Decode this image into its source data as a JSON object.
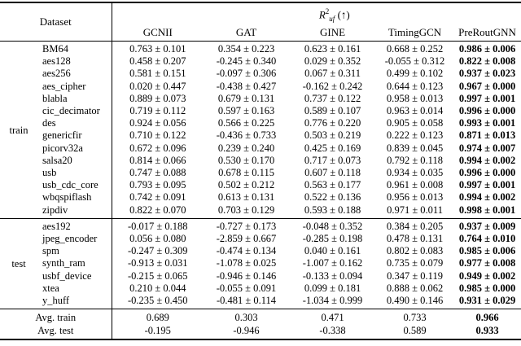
{
  "colors": {
    "background": "#ffffff",
    "text": "#000000",
    "rule": "#000000"
  },
  "table": {
    "header": {
      "dataset_label": "Dataset",
      "metric": {
        "base": "R",
        "sup": "2",
        "sub": "uf",
        "suffix": " (↑)"
      },
      "columns": [
        "GCNII",
        "GAT",
        "GINE",
        "TimingGCN",
        "PreRoutGNN"
      ]
    },
    "groups": [
      {
        "label": "train",
        "rows": [
          {
            "dataset": "BM64",
            "values": [
              "0.763 ± 0.101",
              "0.354 ± 0.223",
              "0.623 ± 0.161",
              "0.668 ± 0.252",
              "0.986 ± 0.006"
            ]
          },
          {
            "dataset": "aes128",
            "values": [
              "0.458 ± 0.207",
              "-0.245 ± 0.340",
              "0.029 ± 0.352",
              "-0.055 ± 0.312",
              "0.822 ± 0.008"
            ]
          },
          {
            "dataset": "aes256",
            "values": [
              "0.581 ± 0.151",
              "-0.097 ± 0.306",
              "0.067 ± 0.311",
              "0.499 ± 0.102",
              "0.937 ± 0.023"
            ]
          },
          {
            "dataset": "aes_cipher",
            "values": [
              "0.020 ± 0.447",
              "-0.438 ± 0.427",
              "-0.162 ± 0.242",
              "0.644 ± 0.123",
              "0.967 ± 0.000"
            ]
          },
          {
            "dataset": "blabla",
            "values": [
              "0.889 ± 0.073",
              "0.679 ± 0.131",
              "0.737 ± 0.122",
              "0.958 ± 0.013",
              "0.997 ± 0.001"
            ]
          },
          {
            "dataset": "cic_decimator",
            "values": [
              "0.719 ± 0.112",
              "0.597 ± 0.163",
              "0.589 ± 0.107",
              "0.963 ± 0.014",
              "0.996 ± 0.000"
            ]
          },
          {
            "dataset": "des",
            "values": [
              "0.924 ± 0.056",
              "0.566 ± 0.225",
              "0.776 ± 0.220",
              "0.905 ± 0.058",
              "0.993 ± 0.001"
            ]
          },
          {
            "dataset": "genericfir",
            "values": [
              "0.710 ± 0.122",
              "-0.436 ± 0.733",
              "0.503 ± 0.219",
              "0.222 ± 0.123",
              "0.871 ± 0.013"
            ]
          },
          {
            "dataset": "picorv32a",
            "values": [
              "0.672 ± 0.096",
              "0.239 ± 0.240",
              "0.425 ± 0.169",
              "0.839 ± 0.045",
              "0.974 ± 0.007"
            ]
          },
          {
            "dataset": "salsa20",
            "values": [
              "0.814 ± 0.066",
              "0.530 ± 0.170",
              "0.717 ± 0.073",
              "0.792 ± 0.118",
              "0.994 ± 0.002"
            ]
          },
          {
            "dataset": "usb",
            "values": [
              "0.747 ± 0.088",
              "0.678 ± 0.115",
              "0.607 ± 0.118",
              "0.934 ± 0.035",
              "0.996 ± 0.000"
            ]
          },
          {
            "dataset": "usb_cdc_core",
            "values": [
              "0.793 ± 0.095",
              "0.502 ± 0.212",
              "0.563 ± 0.177",
              "0.961 ± 0.008",
              "0.997 ± 0.001"
            ]
          },
          {
            "dataset": "wbqspiflash",
            "values": [
              "0.742 ± 0.091",
              "0.613 ± 0.131",
              "0.522 ± 0.136",
              "0.956 ± 0.013",
              "0.994 ± 0.002"
            ]
          },
          {
            "dataset": "zipdiv",
            "values": [
              "0.822 ± 0.070",
              "0.703 ± 0.129",
              "0.593 ± 0.188",
              "0.971 ± 0.011",
              "0.998 ± 0.001"
            ]
          }
        ]
      },
      {
        "label": "test",
        "rows": [
          {
            "dataset": "aes192",
            "values": [
              "-0.017 ± 0.188",
              "-0.727 ± 0.173",
              "-0.048 ± 0.352",
              "0.384 ± 0.205",
              "0.937 ± 0.009"
            ]
          },
          {
            "dataset": "jpeg_encoder",
            "values": [
              "0.056 ± 0.080",
              "-2.859 ± 0.667",
              "-0.285 ± 0.198",
              "0.478 ± 0.131",
              "0.764 ± 0.010"
            ]
          },
          {
            "dataset": "spm",
            "values": [
              "-0.247 ± 0.309",
              "-0.474 ± 0.134",
              "0.040 ± 0.161",
              "0.802 ± 0.083",
              "0.985 ± 0.006"
            ]
          },
          {
            "dataset": "synth_ram",
            "values": [
              "-0.913 ± 0.031",
              "-1.078 ± 0.025",
              "-1.007 ± 0.162",
              "0.735 ± 0.079",
              "0.977 ± 0.008"
            ]
          },
          {
            "dataset": "usbf_device",
            "values": [
              "-0.215 ± 0.065",
              "-0.946 ± 0.146",
              "-0.133 ± 0.094",
              "0.347 ± 0.119",
              "0.949 ± 0.002"
            ]
          },
          {
            "dataset": "xtea",
            "values": [
              "0.210 ± 0.044",
              "-0.055 ± 0.091",
              "0.099 ± 0.181",
              "0.888 ± 0.062",
              "0.985 ± 0.000"
            ]
          },
          {
            "dataset": "y_huff",
            "values": [
              "-0.235 ± 0.450",
              "-0.481 ± 0.114",
              "-1.034 ± 0.999",
              "0.490 ± 0.146",
              "0.931 ± 0.029"
            ]
          }
        ]
      }
    ],
    "summary": [
      {
        "label": "Avg. train",
        "values": [
          "0.689",
          "0.303",
          "0.471",
          "0.733",
          "0.966"
        ]
      },
      {
        "label": "Avg. test",
        "values": [
          "-0.195",
          "-0.946",
          "-0.338",
          "0.589",
          "0.933"
        ]
      }
    ]
  }
}
